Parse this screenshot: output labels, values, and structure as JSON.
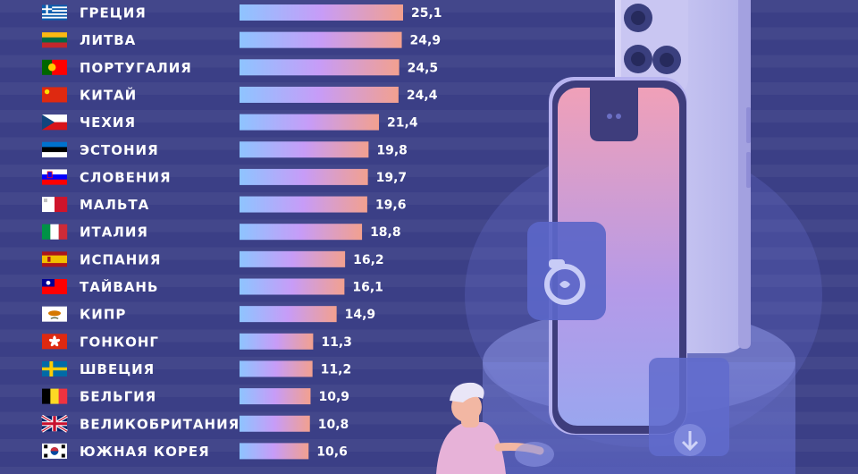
{
  "chart_data": {
    "type": "bar",
    "orientation": "horizontal",
    "title": "",
    "xlabel": "",
    "ylabel": "",
    "xlim": [
      0,
      25.1
    ],
    "grid": false,
    "colors": {
      "bar_start": "#8ec4ff",
      "bar_mid": "#c79cf7",
      "bar_end": "#f2a08f"
    },
    "categories": [
      "ГРЕЦИЯ",
      "ЛИТВА",
      "ПОРТУГАЛИЯ",
      "КИТАЙ",
      "ЧЕХИЯ",
      "ЭСТОНИЯ",
      "СЛОВЕНИЯ",
      "МАЛЬТА",
      "ИТАЛИЯ",
      "ИСПАНИЯ",
      "ТАЙВАНЬ",
      "КИПР",
      "ГОНКОНГ",
      "ШВЕЦИЯ",
      "БЕЛЬГИЯ",
      "ВЕЛИКОБРИТАНИЯ",
      "ЮЖНАЯ КОРЕЯ"
    ],
    "values": [
      25.1,
      24.9,
      24.5,
      24.4,
      21.4,
      19.8,
      19.7,
      19.6,
      18.8,
      16.2,
      16.1,
      14.9,
      11.3,
      11.2,
      10.9,
      10.8,
      10.6
    ],
    "value_labels": [
      "25,1",
      "24,9",
      "24,5",
      "24,4",
      "21,4",
      "19,8",
      "19,7",
      "19,6",
      "18,8",
      "16,2",
      "16,1",
      "14,9",
      "11,3",
      "11,2",
      "10,9",
      "10,8",
      "10,6"
    ],
    "flags": [
      "flag-greece",
      "flag-lithuania",
      "flag-portugal",
      "flag-china",
      "flag-czechia",
      "flag-estonia",
      "flag-slovenia",
      "flag-malta",
      "flag-italy",
      "flag-spain",
      "flag-taiwan",
      "flag-cyprus",
      "flag-hong-kong",
      "flag-sweden",
      "flag-belgium",
      "flag-united-kingdom",
      "flag-south-korea"
    ]
  },
  "illustration": {
    "icons": [
      "smartphone-back-icon",
      "smartphone-front-icon",
      "camera-app-icon",
      "download-icon",
      "person-icon"
    ]
  }
}
